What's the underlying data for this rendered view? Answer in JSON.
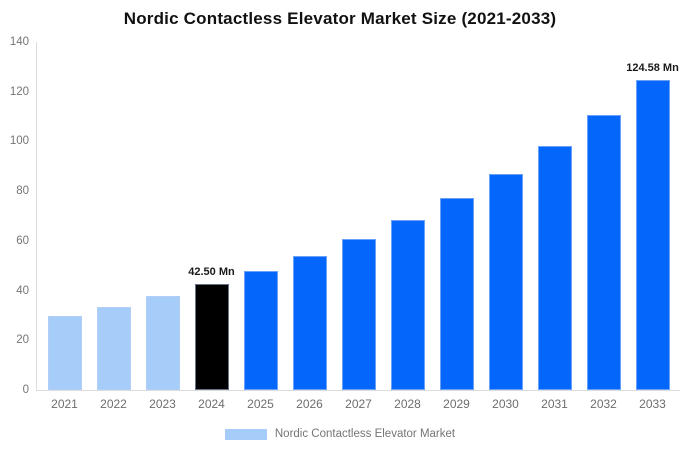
{
  "chart_data": {
    "type": "bar",
    "title": "Nordic Contactless Elevator Market Size (2021-2033)",
    "categories": [
      "2021",
      "2022",
      "2023",
      "2024",
      "2025",
      "2026",
      "2027",
      "2028",
      "2029",
      "2030",
      "2031",
      "2032",
      "2033"
    ],
    "values": [
      29.7,
      33.47,
      37.71,
      42.5,
      47.89,
      53.97,
      60.82,
      68.53,
      77.23,
      87.02,
      98.06,
      110.5,
      124.58
    ],
    "unit": "Mn",
    "xlabel": "",
    "ylabel": "",
    "ylim": [
      0,
      140
    ],
    "yticks": [
      0,
      20,
      40,
      60,
      80,
      100,
      120,
      140
    ],
    "grid": false,
    "bar_color_keys": [
      "light",
      "light",
      "light",
      "highlight",
      "primary",
      "primary",
      "primary",
      "primary",
      "primary",
      "primary",
      "primary",
      "primary",
      "primary"
    ],
    "data_labels": [
      {
        "index": 3,
        "text": "42.50 Mn"
      },
      {
        "index": 12,
        "text": "124.58 Mn"
      }
    ],
    "legend": {
      "label": "Nordic Contactless Elevator Market",
      "swatch_color": "#A6CDFA",
      "position": "bottom"
    },
    "colors": {
      "light": "#A6CDFA",
      "primary": "#0566FB",
      "highlight": "#000000",
      "axis": "#DCDCDC",
      "tick_text": "#757575",
      "value_label_text": "#1A1A1A",
      "title_text": "#111111",
      "background": "#FFFFFF"
    }
  }
}
